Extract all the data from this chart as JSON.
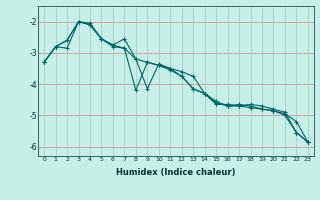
{
  "xlabel": "Humidex (Indice chaleur)",
  "ylabel": "",
  "bg_color": "#c8eee8",
  "line_color": "#006666",
  "grid_color_major": "#f0a0a0",
  "grid_color_minor": "#b8ddd8",
  "xlim": [
    -0.5,
    23.5
  ],
  "ylim": [
    -6.3,
    -1.5
  ],
  "yticks": [
    -6,
    -5,
    -4,
    -3,
    -2
  ],
  "xticks": [
    0,
    1,
    2,
    3,
    4,
    5,
    6,
    7,
    8,
    9,
    10,
    11,
    12,
    13,
    14,
    15,
    16,
    17,
    18,
    19,
    20,
    21,
    22,
    23
  ],
  "series": [
    [
      0,
      1,
      2,
      3,
      4,
      5,
      6,
      7,
      8,
      9,
      10,
      11,
      12,
      13,
      14,
      15,
      16,
      17,
      18,
      19,
      20,
      21,
      22,
      23
    ],
    [
      -3.3,
      -2.8,
      -2.85,
      -2.0,
      -2.05,
      -2.55,
      -2.75,
      -2.55,
      -3.2,
      -4.15,
      -3.35,
      -3.5,
      -3.6,
      -3.75,
      -4.3,
      -4.65,
      -4.65,
      -4.7,
      -4.65,
      -4.7,
      -4.8,
      -4.9,
      -5.55,
      -5.85
    ],
    [
      -3.3,
      -2.8,
      -2.6,
      -2.0,
      -2.1,
      -2.55,
      -2.75,
      -2.85,
      -3.2,
      -3.3,
      -3.4,
      -3.5,
      -3.75,
      -4.15,
      -4.3,
      -4.55,
      -4.7,
      -4.65,
      -4.7,
      -4.8,
      -4.85,
      -4.95,
      -5.2,
      -5.85
    ],
    [
      -3.3,
      -2.8,
      -2.6,
      -2.0,
      -2.1,
      -2.55,
      -2.8,
      -2.85,
      -4.2,
      -3.3,
      -3.4,
      -3.55,
      -3.75,
      -4.15,
      -4.3,
      -4.6,
      -4.7,
      -4.7,
      -4.75,
      -4.8,
      -4.85,
      -5.0,
      -5.55,
      -5.85
    ]
  ]
}
